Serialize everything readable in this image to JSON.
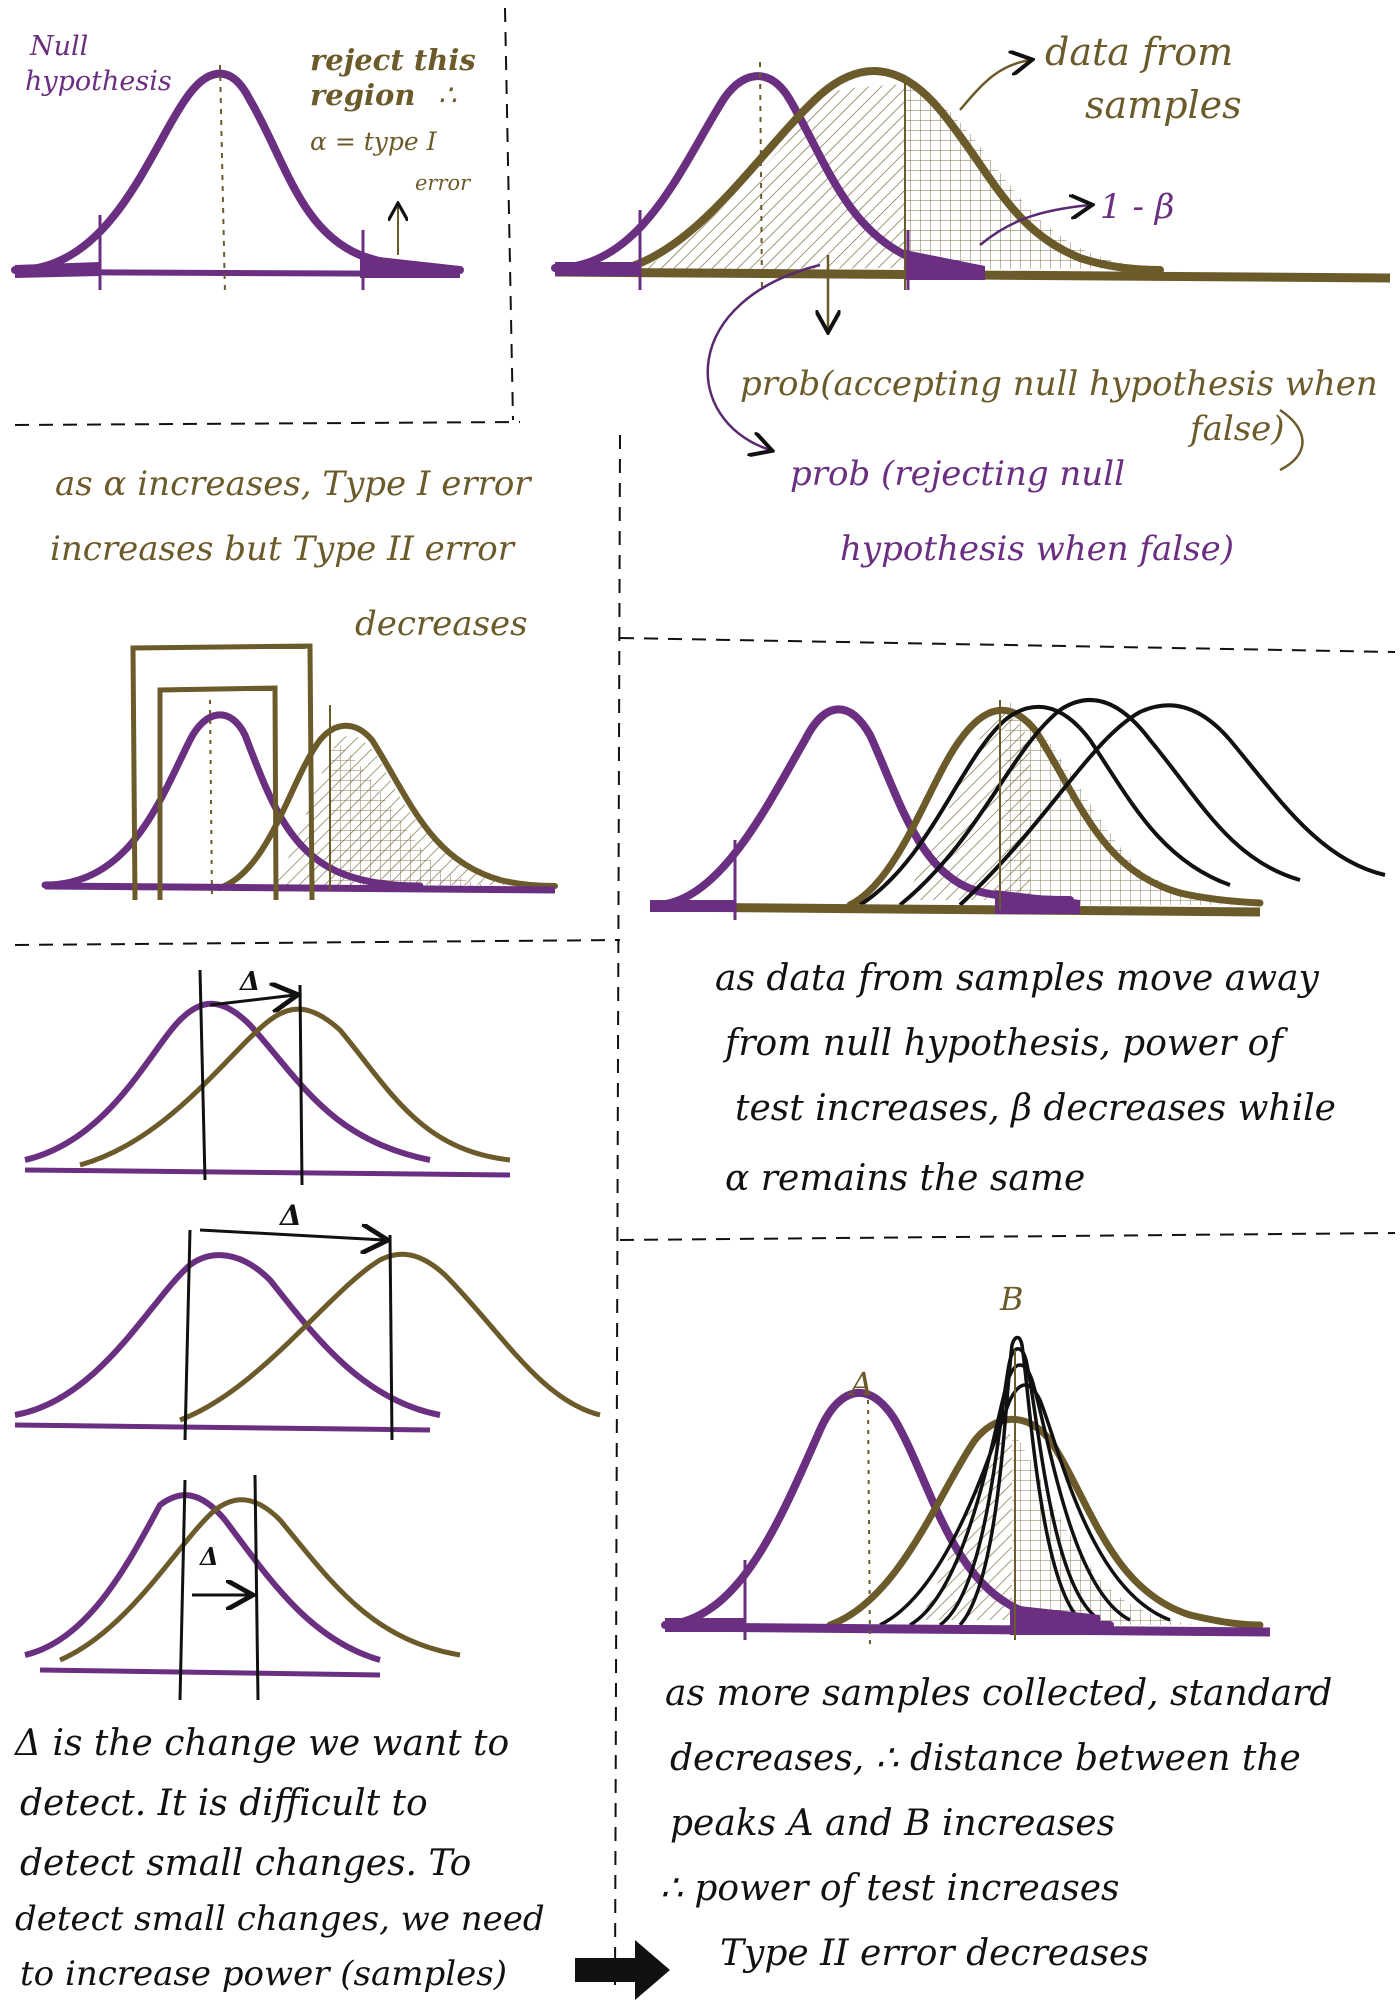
{
  "colors": {
    "null_curve": "#6a2f80",
    "sample_curve": "#6b5a2a",
    "ink": "#111111",
    "paper": "#ffffff"
  },
  "panel1": {
    "null_label_1": "Null",
    "null_label_2": "hypothesis",
    "reject_1": "reject this",
    "reject_2": "region",
    "therefore": "∴",
    "alpha_1": "α = type I",
    "alpha_2": "error"
  },
  "panel2": {
    "data_1": "data from",
    "data_2": "samples",
    "one_minus_beta": "1 - β",
    "prob_accept_1": "prob(accepting null hypothesis when",
    "prob_accept_2": "false)",
    "prob_reject_1": "prob (rejecting null",
    "prob_reject_2": "hypothesis when false)"
  },
  "panel3": {
    "line1": "as α increases, Type I error",
    "line2": "increases but Type II error",
    "line3": "decreases"
  },
  "panel4": {
    "line1": "as data from samples move away",
    "line2": "from null hypothesis, power of",
    "line3": "test increases, β decreases while",
    "line4": "α remains the same"
  },
  "panel5": {
    "delta": "Δ",
    "line1": "Δ is the change we want to",
    "line2": "detect. It is difficult to",
    "line3": "detect small changes. To",
    "line4": "detect small changes, we need",
    "line5": "to increase power (samples)"
  },
  "panel6": {
    "label_a": "A",
    "label_b": "B",
    "line1": "as more samples collected, standard",
    "line2": "decreases, ∴ distance between the",
    "line3": "peaks A and B increases",
    "line4": "∴ power of test increases",
    "line5": "Type II error decreases"
  }
}
